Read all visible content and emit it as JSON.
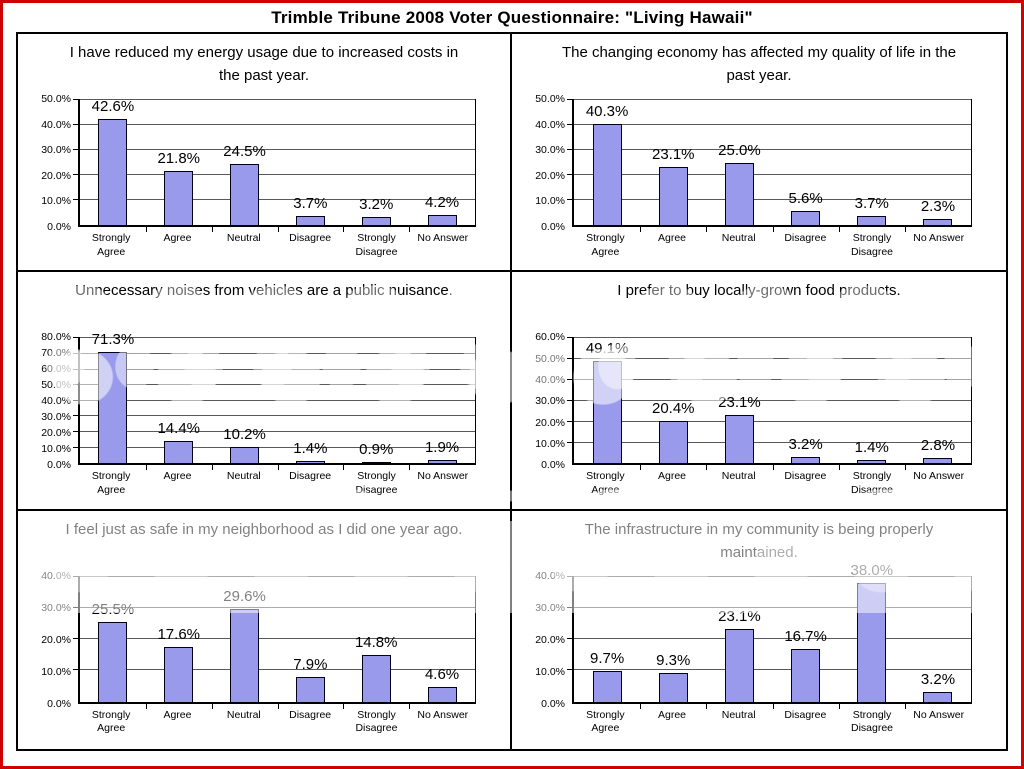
{
  "page_title": "Trimble Tribune 2008 Voter Questionnaire: \"Living Hawaii\"",
  "chart_data": [
    {
      "type": "bar",
      "title": "I have reduced my energy usage due to increased costs in the past year.",
      "categories": [
        "Strongly Agree",
        "Agree",
        "Neutral",
        "Disagree",
        "Strongly\nDisagree",
        "No Answer"
      ],
      "values": [
        42.6,
        21.8,
        24.5,
        3.7,
        3.2,
        4.2
      ],
      "value_labels": [
        "42.6%",
        "21.8%",
        "24.5%",
        "3.7%",
        "3.2%",
        "4.2%"
      ],
      "ylim": [
        0,
        50
      ],
      "ytick_step": 10,
      "ytick_labels": [
        "50.0%",
        "40.0%",
        "30.0%",
        "20.0%",
        "10.0%",
        "0.0%"
      ],
      "bar_color": "#9a9aec",
      "grid": "on",
      "legend": "none"
    },
    {
      "type": "bar",
      "title": "The changing economy has affected my quality of life in the past year.",
      "categories": [
        "Strongly Agree",
        "Agree",
        "Neutral",
        "Disagree",
        "Strongly\nDisagree",
        "No Answer"
      ],
      "values": [
        40.3,
        23.1,
        25.0,
        5.6,
        3.7,
        2.3
      ],
      "value_labels": [
        "40.3%",
        "23.1%",
        "25.0%",
        "5.6%",
        "3.7%",
        "2.3%"
      ],
      "ylim": [
        0,
        50
      ],
      "ytick_step": 10,
      "ytick_labels": [
        "50.0%",
        "40.0%",
        "30.0%",
        "20.0%",
        "10.0%",
        "0.0%"
      ],
      "bar_color": "#9a9aec",
      "grid": "on",
      "legend": "none"
    },
    {
      "type": "bar",
      "title": "Unnecessary noises from vehicles are a public nuisance.",
      "categories": [
        "Strongly Agree",
        "Agree",
        "Neutral",
        "Disagree",
        "Strongly\nDisagree",
        "No Answer"
      ],
      "values": [
        71.3,
        14.4,
        10.2,
        1.4,
        0.9,
        1.9
      ],
      "value_labels": [
        "71.3%",
        "14.4%",
        "10.2%",
        "1.4%",
        "0.9%",
        "1.9%"
      ],
      "ylim": [
        0,
        80
      ],
      "ytick_step": 10,
      "ytick_labels": [
        "80.0%",
        "70.0%",
        "60.0%",
        "50.0%",
        "40.0%",
        "30.0%",
        "20.0%",
        "10.0%",
        "0.0%"
      ],
      "bar_color": "#9a9aec",
      "grid": "on",
      "legend": "none"
    },
    {
      "type": "bar",
      "title": "I prefer to buy locally-grown food products.",
      "categories": [
        "Strongly Agree",
        "Agree",
        "Neutral",
        "Disagree",
        "Strongly\nDisagree",
        "No Answer"
      ],
      "values": [
        49.1,
        20.4,
        23.1,
        3.2,
        1.4,
        2.8
      ],
      "value_labels": [
        "49.1%",
        "20.4%",
        "23.1%",
        "3.2%",
        "1.4%",
        "2.8%"
      ],
      "ylim": [
        0,
        60
      ],
      "ytick_step": 10,
      "ytick_labels": [
        "60.0%",
        "50.0%",
        "40.0%",
        "30.0%",
        "20.0%",
        "10.0%",
        "0.0%"
      ],
      "bar_color": "#9a9aec",
      "grid": "on",
      "legend": "none"
    },
    {
      "type": "bar",
      "title": "I feel just as safe in my neighborhood as I did one year ago.",
      "categories": [
        "Strongly Agree",
        "Agree",
        "Neutral",
        "Disagree",
        "Strongly\nDisagree",
        "No Answer"
      ],
      "values": [
        25.5,
        17.6,
        29.6,
        7.9,
        14.8,
        4.6
      ],
      "value_labels": [
        "25.5%",
        "17.6%",
        "29.6%",
        "7.9%",
        "14.8%",
        "4.6%"
      ],
      "ylim": [
        0,
        40
      ],
      "ytick_step": 10,
      "ytick_labels": [
        "40.0%",
        "30.0%",
        "20.0%",
        "10.0%",
        "0.0%"
      ],
      "bar_color": "#9a9aec",
      "grid": "on",
      "legend": "none"
    },
    {
      "type": "bar",
      "title": "The infrastructure in my community is being properly maintained.",
      "categories": [
        "Strongly Agree",
        "Agree",
        "Neutral",
        "Disagree",
        "Strongly\nDisagree",
        "No Answer"
      ],
      "values": [
        9.7,
        9.3,
        23.1,
        16.7,
        38.0,
        3.2
      ],
      "value_labels": [
        "9.7%",
        "9.3%",
        "23.1%",
        "16.7%",
        "38.0%",
        "3.2%"
      ],
      "ylim": [
        0,
        40
      ],
      "ytick_step": 10,
      "ytick_labels": [
        "40.0%",
        "30.0%",
        "20.0%",
        "10.0%",
        "0.0%"
      ],
      "bar_color": "#9a9aec",
      "grid": "on",
      "legend": "none"
    }
  ],
  "colors": {
    "bar_fill": "#9a9aec",
    "bar_border": "#000016",
    "outer_border": "#cf0000",
    "panel_border": "#000000",
    "gridline": "#595959"
  }
}
